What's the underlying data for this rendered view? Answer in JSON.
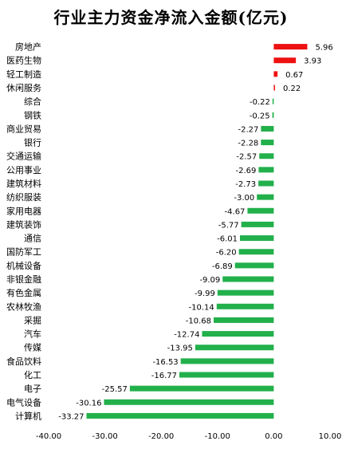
{
  "chart_data": {
    "type": "bar",
    "orientation": "horizontal",
    "title": "行业主力资金净流入金额(亿元)",
    "categories": [
      "房地产",
      "医药生物",
      "轻工制造",
      "休闲服务",
      "综合",
      "钢铁",
      "商业贸易",
      "银行",
      "交通运输",
      "公用事业",
      "建筑材料",
      "纺织服装",
      "家用电器",
      "建筑装饰",
      "通信",
      "国防军工",
      "机械设备",
      "非银金融",
      "有色金属",
      "农林牧渔",
      "采掘",
      "汽车",
      "传媒",
      "食品饮料",
      "化工",
      "电子",
      "电气设备",
      "计算机"
    ],
    "values": [
      5.96,
      3.93,
      0.67,
      0.22,
      -0.22,
      -0.25,
      -2.27,
      -2.28,
      -2.57,
      -2.69,
      -2.73,
      -3.0,
      -4.67,
      -5.77,
      -6.01,
      -6.2,
      -6.89,
      -9.09,
      -9.99,
      -10.14,
      -10.68,
      -12.74,
      -13.95,
      -16.53,
      -16.77,
      -25.57,
      -30.16,
      -33.27
    ],
    "value_labels": [
      "5.96",
      "3.93",
      "0.67",
      "0.22",
      "-0.22",
      "-0.25",
      "-2.27",
      "-2.28",
      "-2.57",
      "-2.69",
      "-2.73",
      "-3.00",
      "-4.67",
      "-5.77",
      "-6.01",
      "-6.20",
      "-6.89",
      "-9.09",
      "-9.99",
      "-10.14",
      "-10.68",
      "-12.74",
      "-13.95",
      "-16.53",
      "-16.77",
      "-25.57",
      "-30.16",
      "-33.27"
    ],
    "xlim": [
      -40,
      10
    ],
    "xticks": [
      -40,
      -30,
      -20,
      -10,
      0,
      10
    ],
    "xtick_labels": [
      "-40.00",
      "-30.00",
      "-20.00",
      "-10.00",
      "0.00",
      "10.00"
    ],
    "xlabel": "",
    "ylabel": "",
    "grid": false,
    "colors": {
      "positive": "#ee1111",
      "negative": "#22b04b",
      "axis": "#444444",
      "text": "#000000"
    }
  }
}
